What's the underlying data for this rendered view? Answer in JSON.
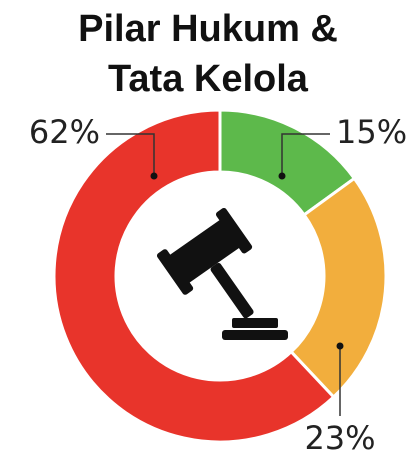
{
  "chart_data": {
    "type": "donut",
    "title": "Pilar Hukum & Tata Kelola",
    "categories": [
      null,
      null,
      null
    ],
    "values": [
      15,
      23,
      62
    ],
    "value_labels": [
      "15%",
      "23%",
      "62%"
    ],
    "colors": [
      "#5db94b",
      "#f2ae3d",
      "#e8342b"
    ]
  }
}
